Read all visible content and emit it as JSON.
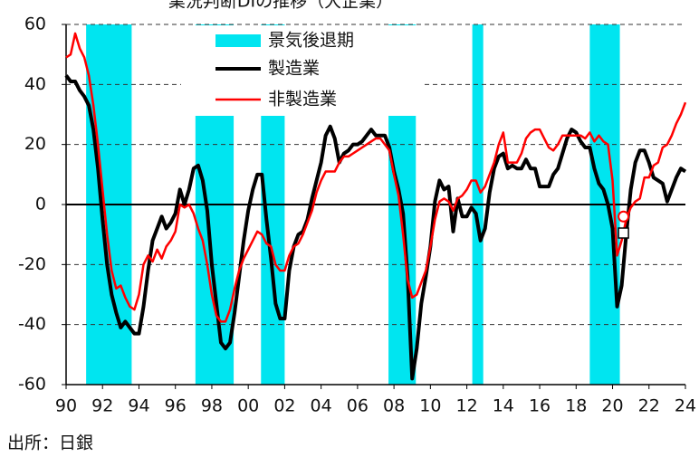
{
  "chart_data": {
    "type": "line",
    "title": "業況判断DIの推移（大企業）",
    "source": "出所：日銀",
    "xlim": [
      1990,
      2024
    ],
    "ylim": [
      -60,
      60
    ],
    "yticks": [
      -60,
      -40,
      -20,
      0,
      20,
      40,
      60
    ],
    "xticks": [
      {
        "value": 1990,
        "label": "90"
      },
      {
        "value": 1992,
        "label": "92"
      },
      {
        "value": 1994,
        "label": "94"
      },
      {
        "value": 1996,
        "label": "96"
      },
      {
        "value": 1998,
        "label": "98"
      },
      {
        "value": 2000,
        "label": "00"
      },
      {
        "value": 2002,
        "label": "02"
      },
      {
        "value": 2004,
        "label": "04"
      },
      {
        "value": 2006,
        "label": "06"
      },
      {
        "value": 2008,
        "label": "08"
      },
      {
        "value": 2010,
        "label": "10"
      },
      {
        "value": 2012,
        "label": "12"
      },
      {
        "value": 2014,
        "label": "14"
      },
      {
        "value": 2016,
        "label": "16"
      },
      {
        "value": 2018,
        "label": "18"
      },
      {
        "value": 2020,
        "label": "20"
      },
      {
        "value": 2022,
        "label": "22"
      },
      {
        "value": 2024,
        "label": "24"
      }
    ],
    "grid": true,
    "recessions": {
      "name": "景気後退期",
      "color": "#00e5f0",
      "periods": [
        [
          1991.1,
          1993.6
        ],
        [
          1997.1,
          1999.2
        ],
        [
          2000.7,
          2002.0
        ],
        [
          2007.7,
          2009.2
        ],
        [
          2012.3,
          2012.9
        ],
        [
          2018.75,
          2020.4
        ]
      ]
    },
    "x": [
      1990,
      1990.25,
      1990.5,
      1990.75,
      1991,
      1991.25,
      1991.5,
      1991.75,
      1992,
      1992.25,
      1992.5,
      1992.75,
      1993,
      1993.25,
      1993.5,
      1993.75,
      1994,
      1994.25,
      1994.5,
      1994.75,
      1995,
      1995.25,
      1995.5,
      1995.75,
      1996,
      1996.25,
      1996.5,
      1996.75,
      1997,
      1997.25,
      1997.5,
      1997.75,
      1998,
      1998.25,
      1998.5,
      1998.75,
      1999,
      1999.25,
      1999.5,
      1999.75,
      2000,
      2000.25,
      2000.5,
      2000.75,
      2001,
      2001.25,
      2001.5,
      2001.75,
      2002,
      2002.25,
      2002.5,
      2002.75,
      2003,
      2003.25,
      2003.5,
      2003.75,
      2004,
      2004.25,
      2004.5,
      2004.75,
      2005,
      2005.25,
      2005.5,
      2005.75,
      2006,
      2006.25,
      2006.5,
      2006.75,
      2007,
      2007.25,
      2007.5,
      2007.75,
      2008,
      2008.25,
      2008.5,
      2008.75,
      2009,
      2009.25,
      2009.5,
      2009.75,
      2010,
      2010.25,
      2010.5,
      2010.75,
      2011,
      2011.25,
      2011.5,
      2011.75,
      2012,
      2012.25,
      2012.5,
      2012.75,
      2013,
      2013.25,
      2013.5,
      2013.75,
      2014,
      2014.25,
      2014.5,
      2014.75,
      2015,
      2015.25,
      2015.5,
      2015.75,
      2016,
      2016.25,
      2016.5,
      2016.75,
      2017,
      2017.25,
      2017.5,
      2017.75,
      2018,
      2018.25,
      2018.5,
      2018.75,
      2019,
      2019.25,
      2019.5,
      2019.75,
      2020,
      2020.25,
      2020.5,
      2020.75,
      2021,
      2021.25,
      2021.5,
      2021.75,
      2022,
      2022.25,
      2022.5,
      2022.75,
      2023,
      2023.25,
      2023.5,
      2023.75,
      2024
    ],
    "series": [
      {
        "name": "製造業",
        "color": "#000000",
        "width": 4,
        "values": [
          43,
          41,
          41,
          38,
          36,
          33,
          25,
          12,
          -5,
          -20,
          -30,
          -36,
          -41,
          -39,
          -41,
          -43,
          -43,
          -34,
          -22,
          -12,
          -8,
          -4,
          -8,
          -6,
          -3,
          5,
          0,
          5,
          12,
          13,
          8,
          -2,
          -20,
          -33,
          -46,
          -48,
          -46,
          -36,
          -24,
          -12,
          -2,
          5,
          10,
          10,
          -5,
          -18,
          -33,
          -38,
          -38,
          -22,
          -14,
          -10,
          -9,
          -5,
          2,
          8,
          14,
          23,
          26,
          22,
          14,
          17,
          18,
          20,
          20,
          21,
          23,
          25,
          23,
          23,
          23,
          19,
          11,
          5,
          -3,
          -24,
          -58,
          -48,
          -33,
          -24,
          -14,
          1,
          8,
          5,
          6,
          -9,
          2,
          -4,
          -4,
          -1,
          -3,
          -12,
          -8,
          4,
          12,
          16,
          17,
          12,
          13,
          12,
          12,
          15,
          12,
          12,
          6,
          6,
          6,
          10,
          12,
          17,
          22,
          25,
          24,
          21,
          19,
          19,
          12,
          7,
          5,
          0,
          -8,
          -34,
          -27,
          -10,
          5,
          14,
          18,
          18,
          14,
          9,
          8,
          7,
          1,
          5,
          9,
          12,
          11
        ]
      },
      {
        "name": "非製造業",
        "color": "#ff0000",
        "width": 2.5,
        "values": [
          49,
          50,
          57,
          52,
          49,
          43,
          33,
          20,
          5,
          -10,
          -22,
          -28,
          -27,
          -31,
          -34,
          -35,
          -30,
          -20,
          -17,
          -19,
          -15,
          -18,
          -14,
          -12,
          -9,
          0,
          -1,
          0,
          -3,
          -8,
          -12,
          -20,
          -30,
          -37,
          -39,
          -39,
          -35,
          -28,
          -22,
          -18,
          -15,
          -12,
          -9,
          -10,
          -13,
          -14,
          -20,
          -22,
          -22,
          -17,
          -14,
          -13,
          -10,
          -6,
          -2,
          4,
          8,
          11,
          11,
          11,
          14,
          16,
          16,
          17,
          18,
          19,
          20,
          21,
          22,
          22,
          20,
          18,
          10,
          3,
          -10,
          -25,
          -31,
          -30,
          -26,
          -22,
          -14,
          -5,
          1,
          2,
          1,
          -2,
          2,
          3,
          5,
          8,
          8,
          4,
          6,
          10,
          14,
          20,
          24,
          14,
          14,
          14,
          17,
          22,
          24,
          25,
          25,
          22,
          19,
          18,
          20,
          23,
          23,
          23,
          23,
          23,
          22,
          24,
          21,
          23,
          21,
          20,
          8,
          -17,
          -12,
          -5,
          -1,
          1,
          2,
          9,
          9,
          13,
          14,
          19,
          20,
          23,
          27,
          30,
          34
        ]
      }
    ],
    "forecast": [
      {
        "x": 2020.6,
        "value": -4,
        "shape": "circle",
        "color": "#ff0000"
      },
      {
        "x": 2020.6,
        "value": -9.5,
        "shape": "square",
        "color": "#000000"
      }
    ]
  }
}
